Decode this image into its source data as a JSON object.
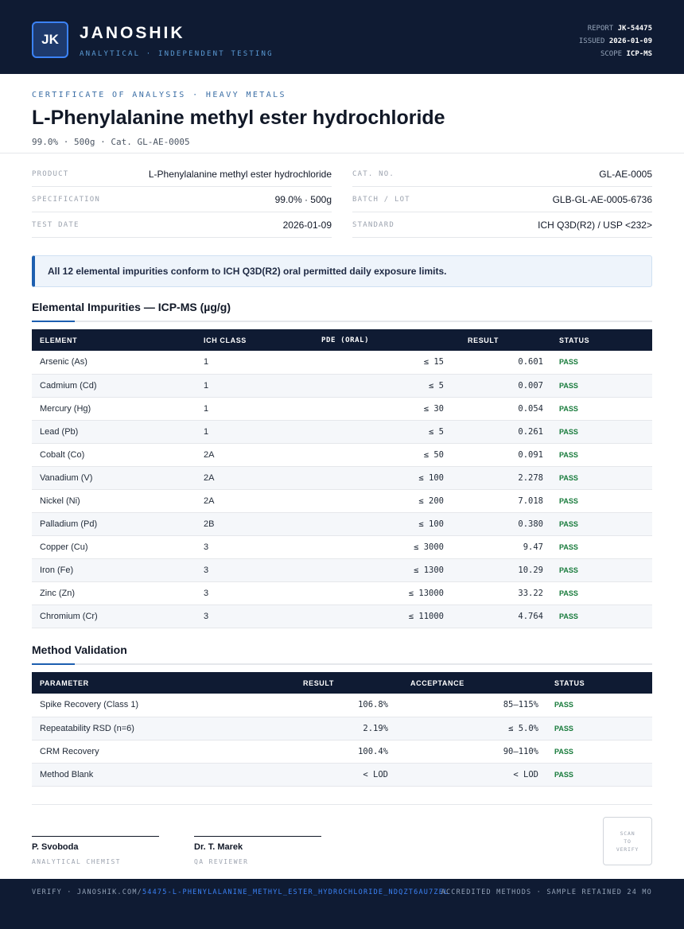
{
  "header": {
    "logo_text": "JK",
    "brand": "JANOSHIK",
    "tagline": "ANALYTICAL · INDEPENDENT TESTING",
    "report_label": "REPORT",
    "report_value": "JK-54475",
    "issued_label": "ISSUED",
    "issued_value": "2026-01-09",
    "scope_label": "SCOPE",
    "scope_value": "ICP-MS"
  },
  "doc": {
    "eyebrow": "CERTIFICATE OF ANALYSIS · HEAVY METALS",
    "title": "L-Phenylalanine methyl ester hydrochloride",
    "subtitle": "99.0% · 500g  ·  Cat. GL-AE-0005"
  },
  "info_left": [
    {
      "key": "PRODUCT",
      "value": "L-Phenylalanine methyl ester hydrochloride"
    },
    {
      "key": "SPECIFICATION",
      "value": "99.0% · 500g"
    },
    {
      "key": "TEST DATE",
      "value": "2026-01-09"
    }
  ],
  "info_right": [
    {
      "key": "CAT. NO.",
      "value": "GL-AE-0005"
    },
    {
      "key": "BATCH / LOT",
      "value": "GLB-GL-AE-0005-6736"
    },
    {
      "key": "STANDARD",
      "value": "ICH Q3D(R2) / USP <232>"
    }
  ],
  "callout": "All 12 elemental impurities conform to ICH Q3D(R2) oral permitted daily exposure limits.",
  "impurities": {
    "title": "Elemental Impurities — ICP-MS (µg/g)",
    "headers": [
      "ELEMENT",
      "ICH CLASS",
      "PDE (ORAL)",
      "RESULT",
      "STATUS"
    ],
    "rows": [
      {
        "element": "Arsenic (As)",
        "class": "1",
        "pde": "≤ 15",
        "result": "0.601",
        "status": "PASS"
      },
      {
        "element": "Cadmium (Cd)",
        "class": "1",
        "pde": "≤ 5",
        "result": "0.007",
        "status": "PASS"
      },
      {
        "element": "Mercury (Hg)",
        "class": "1",
        "pde": "≤ 30",
        "result": "0.054",
        "status": "PASS"
      },
      {
        "element": "Lead (Pb)",
        "class": "1",
        "pde": "≤ 5",
        "result": "0.261",
        "status": "PASS"
      },
      {
        "element": "Cobalt (Co)",
        "class": "2A",
        "pde": "≤ 50",
        "result": "0.091",
        "status": "PASS"
      },
      {
        "element": "Vanadium (V)",
        "class": "2A",
        "pde": "≤ 100",
        "result": "2.278",
        "status": "PASS"
      },
      {
        "element": "Nickel (Ni)",
        "class": "2A",
        "pde": "≤ 200",
        "result": "7.018",
        "status": "PASS"
      },
      {
        "element": "Palladium (Pd)",
        "class": "2B",
        "pde": "≤ 100",
        "result": "0.380",
        "status": "PASS"
      },
      {
        "element": "Copper (Cu)",
        "class": "3",
        "pde": "≤ 3000",
        "result": "9.47",
        "status": "PASS"
      },
      {
        "element": "Iron (Fe)",
        "class": "3",
        "pde": "≤ 1300",
        "result": "10.29",
        "status": "PASS"
      },
      {
        "element": "Zinc (Zn)",
        "class": "3",
        "pde": "≤ 13000",
        "result": "33.22",
        "status": "PASS"
      },
      {
        "element": "Chromium (Cr)",
        "class": "3",
        "pde": "≤ 11000",
        "result": "4.764",
        "status": "PASS"
      }
    ]
  },
  "validation": {
    "title": "Method Validation",
    "headers": [
      "PARAMETER",
      "RESULT",
      "ACCEPTANCE",
      "STATUS"
    ],
    "rows": [
      {
        "parameter": "Spike Recovery (Class 1)",
        "result": "106.8%",
        "acceptance": "85–115%",
        "status": "PASS"
      },
      {
        "parameter": "Repeatability RSD (n=6)",
        "result": "2.19%",
        "acceptance": "≤ 5.0%",
        "status": "PASS"
      },
      {
        "parameter": "CRM Recovery",
        "result": "100.4%",
        "acceptance": "90–110%",
        "status": "PASS"
      },
      {
        "parameter": "Method Blank",
        "result": "< LOD",
        "acceptance": "< LOD",
        "status": "PASS"
      }
    ]
  },
  "signatures": [
    {
      "name": "P. Svoboda",
      "role": "ANALYTICAL CHEMIST"
    },
    {
      "name": "Dr. T. Marek",
      "role": "QA REVIEWER"
    }
  ],
  "qr": {
    "line1": "SCAN",
    "line2": "TO",
    "line3": "VERIFY"
  },
  "footer": {
    "verify_prefix": "VERIFY · JANOSHIK.COM/",
    "verify_link": "54475-L-PHENYLALANINE_METHYL_ESTER_HYDROCHLORIDE_NDQZT6AU7ZEL",
    "right": "ACCREDITED METHODS · SAMPLE RETAINED 24 MO"
  },
  "colors": {
    "navy": "#0f1b33",
    "accent": "#1d5fb0",
    "pass": "#167a3a",
    "link": "#3b82f6"
  }
}
